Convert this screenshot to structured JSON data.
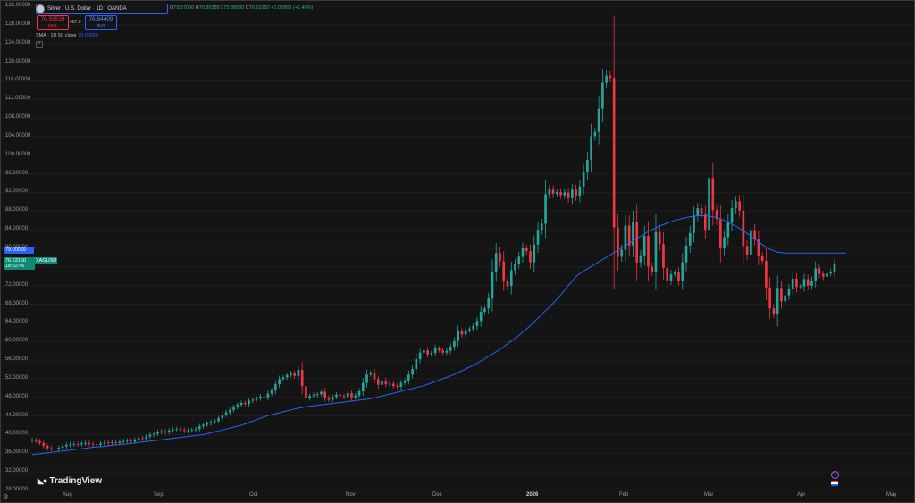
{
  "header": {
    "title": "Silver / U.S. Dollar · 1D · OANDA",
    "ohlc": {
      "o_label": "O",
      "o": "75.57050",
      "h_label": "H",
      "h": "76.80385",
      "l_label": "L",
      "l": "75.38680",
      "c_label": "C",
      "c": "76.63150",
      "change": "+1.05865 (+1.40%)"
    },
    "sell": {
      "price": "76.59539",
      "label": "SELL"
    },
    "spread": "487.0",
    "buy": {
      "price": "76.64409",
      "label": "BUY"
    }
  },
  "indicator": {
    "label": "SMA · 1D 50 close",
    "value": "79.00069"
  },
  "price_tags": {
    "sma": "79.00069",
    "last": "76.63150",
    "countdown": "18:02:46",
    "symbol": "XAGUSD"
  },
  "brand": "TradingView",
  "colors": {
    "up": "#26a69a",
    "down": "#f23645",
    "sma": "#2962ff"
  },
  "chart_data": {
    "type": "candlestick",
    "yaxis": {
      "ylim": [
        32,
        132
      ],
      "ticks": [
        "28.00000",
        "32.00000",
        "36.00000",
        "40.00000",
        "44.00000",
        "48.00000",
        "52.00000",
        "56.00000",
        "60.00000",
        "64.00000",
        "68.00000",
        "72.00000",
        "76.00000",
        "80.00000",
        "84.00000",
        "88.00000",
        "92.00000",
        "96.00000",
        "100.00000",
        "104.00000",
        "108.00000",
        "112.00000",
        "116.00000",
        "120.00000",
        "124.00000",
        "128.00000",
        "132.00000"
      ]
    },
    "xaxis": {
      "ticks": [
        "Aug",
        "Sep",
        "Oct",
        "Nov",
        "Dec",
        "2026",
        "Feb",
        "Mar",
        "Apr",
        "May"
      ],
      "bold": [
        "2026"
      ]
    },
    "closes": [
      38.9,
      38.6,
      38.2,
      37.6,
      37.1,
      36.9,
      37.0,
      37.2,
      37.5,
      37.8,
      37.9,
      38.0,
      37.9,
      38.1,
      38.2,
      38.0,
      37.9,
      37.8,
      38.1,
      38.3,
      38.2,
      38.4,
      38.2,
      38.5,
      38.6,
      38.7,
      38.5,
      38.9,
      39.2,
      39.1,
      39.6,
      40.0,
      40.2,
      40.6,
      40.7,
      40.5,
      40.9,
      41.1,
      41.2,
      41.0,
      40.8,
      40.9,
      41.0,
      41.2,
      41.8,
      42.1,
      42.4,
      42.7,
      42.9,
      43.5,
      44.3,
      44.8,
      45.3,
      45.9,
      46.4,
      46.8,
      46.6,
      47.3,
      47.5,
      47.8,
      48.2,
      48.0,
      48.8,
      49.5,
      50.8,
      51.9,
      52.3,
      52.8,
      53.2,
      52.6,
      53.9,
      50.4,
      47.8,
      48.3,
      48.5,
      48.7,
      49.2,
      47.9,
      47.5,
      48.1,
      48.6,
      48.3,
      48.1,
      48.9,
      48.0,
      48.4,
      49.3,
      51.1,
      52.9,
      53.3,
      51.9,
      50.7,
      51.6,
      50.8,
      50.9,
      50.4,
      50.3,
      51.1,
      51.6,
      52.9,
      54.1,
      56.2,
      57.6,
      58.1,
      57.2,
      57.5,
      58.5,
      58.1,
      57.6,
      58.0,
      58.9,
      60.1,
      62.2,
      61.5,
      62.4,
      62.7,
      63.3,
      64.4,
      66.4,
      67.1,
      69.2,
      74.9,
      79.0,
      77.2,
      73.0,
      71.9,
      75.3,
      76.7,
      78.2,
      80.0,
      79.4,
      77.0,
      80.8,
      84.0,
      85.3,
      91.6,
      92.6,
      91.7,
      92.1,
      91.4,
      92.0,
      90.8,
      92.6,
      91.3,
      93.3,
      96.3,
      99.0,
      104.1,
      105.0,
      110.0,
      115.6,
      117.1,
      116.6,
      84.5,
      78.2,
      79.7,
      84.9,
      80.6,
      85.6,
      77.0,
      78.5,
      82.7,
      76.1,
      75.0,
      83.5,
      80.9,
      75.8,
      73.1,
      74.4,
      74.8,
      73.1,
      77.0,
      80.6,
      83.3,
      87.0,
      88.6,
      87.5,
      84.0,
      95.1,
      88.2,
      86.3,
      80.0,
      82.4,
      85.5,
      88.6,
      90.1,
      88.1,
      80.5,
      78.7,
      83.9,
      81.9,
      78.3,
      77.3,
      71.6,
      67.1,
      65.9,
      71.5,
      68.6,
      69.9,
      71.3,
      73.5,
      71.7,
      71.8,
      73.4,
      72.0,
      73.1,
      75.7,
      74.5,
      73.9,
      74.6,
      75.0,
      76.6
    ],
    "sma50": [
      35.7,
      35.8,
      35.9,
      36.0,
      36.1,
      36.2,
      36.3,
      36.4,
      36.5,
      36.6,
      36.7,
      36.8,
      36.9,
      37.0,
      37.1,
      37.2,
      37.3,
      37.4,
      37.4,
      37.5,
      37.6,
      37.7,
      37.8,
      37.9,
      37.9,
      38.0,
      38.1,
      38.2,
      38.3,
      38.4,
      38.5,
      38.6,
      38.7,
      38.8,
      38.9,
      39.0,
      39.1,
      39.2,
      39.3,
      39.4,
      39.5,
      39.6,
      39.7,
      39.8,
      39.9,
      40.0,
      40.2,
      40.4,
      40.6,
      40.8,
      41.0,
      41.2,
      41.4,
      41.6,
      41.8,
      42.0,
      42.3,
      42.6,
      42.9,
      43.2,
      43.5,
      43.8,
      44.1,
      44.3,
      44.5,
      44.7,
      44.9,
      45.1,
      45.3,
      45.5,
      45.7,
      45.8,
      46.0,
      46.1,
      46.2,
      46.3,
      46.4,
      46.5,
      46.6,
      46.7,
      46.8,
      46.9,
      47.0,
      47.1,
      47.2,
      47.3,
      47.4,
      47.5,
      47.6,
      47.7,
      47.9,
      48.1,
      48.3,
      48.5,
      48.7,
      48.9,
      49.1,
      49.3,
      49.5,
      49.7,
      49.9,
      50.1,
      50.3,
      50.5,
      50.8,
      51.1,
      51.4,
      51.7,
      52.0,
      52.3,
      52.6,
      52.9,
      53.3,
      53.7,
      54.1,
      54.5,
      54.9,
      55.3,
      55.8,
      56.3,
      56.8,
      57.3,
      57.8,
      58.3,
      58.9,
      59.5,
      60.1,
      60.7,
      61.3,
      62.0,
      62.7,
      63.4,
      64.2,
      65.0,
      65.8,
      66.6,
      67.4,
      68.2,
      69.1,
      70.0,
      71.0,
      72.0,
      73.0,
      73.9,
      74.6,
      75.1,
      75.6,
      76.1,
      76.6,
      77.1,
      77.6,
      78.1,
      78.6,
      79.1,
      79.6,
      80.1,
      80.6,
      81.1,
      81.6,
      82.1,
      82.6,
      83.1,
      83.6,
      84.0,
      84.4,
      84.8,
      85.1,
      85.4,
      85.7,
      86.0,
      86.2,
      86.4,
      86.6,
      86.8,
      86.9,
      87.0,
      87.0,
      87.0,
      86.9,
      86.8,
      86.6,
      86.3,
      86.0,
      85.6,
      85.2,
      84.8,
      84.3,
      83.8,
      83.2,
      82.6,
      82.0,
      81.4,
      80.8,
      80.3,
      79.8,
      79.5,
      79.2,
      79.1,
      79.0,
      79.0,
      79.0,
      79.0,
      79.0,
      79.0,
      79.0,
      79.0,
      79.0,
      79.0,
      79.0,
      79.0,
      79.0,
      79.0,
      79.0,
      79.0,
      79.0
    ]
  }
}
